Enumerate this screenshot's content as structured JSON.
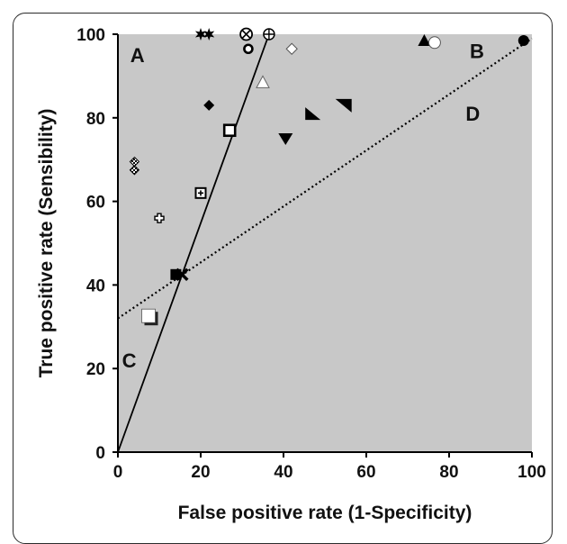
{
  "chart_data": {
    "type": "scatter",
    "xlabel": "False positive rate (1-Specificity)",
    "ylabel": "True positive rate (Sensibility)",
    "xlim": [
      0,
      100
    ],
    "ylim": [
      0,
      100
    ],
    "xticks": [
      0,
      20,
      40,
      60,
      80,
      100
    ],
    "yticks": [
      0,
      20,
      40,
      60,
      80,
      100
    ],
    "grid": false,
    "plot_background": "#c8c8c8",
    "region_labels": [
      {
        "text": "A",
        "x": 3,
        "y": 95
      },
      {
        "text": "B",
        "x": 85,
        "y": 96
      },
      {
        "text": "C",
        "x": 1,
        "y": 22
      },
      {
        "text": "D",
        "x": 84,
        "y": 81
      }
    ],
    "lines": [
      {
        "style": "solid",
        "x": [
          0,
          36.5
        ],
        "y": [
          0,
          100
        ]
      },
      {
        "style": "dotted",
        "x": [
          0,
          100
        ],
        "y": [
          32,
          99
        ]
      }
    ],
    "points": [
      {
        "x": 20,
        "y": 100,
        "marker": "star-filled"
      },
      {
        "x": 22,
        "y": 100,
        "marker": "star-filled"
      },
      {
        "x": 31,
        "y": 100,
        "marker": "circle-x"
      },
      {
        "x": 31.5,
        "y": 96.5,
        "marker": "circle-dot"
      },
      {
        "x": 36.5,
        "y": 100,
        "marker": "circle-plus"
      },
      {
        "x": 42,
        "y": 96.5,
        "marker": "diamond-open"
      },
      {
        "x": 35,
        "y": 88.5,
        "marker": "triangle-up-open"
      },
      {
        "x": 74,
        "y": 98.5,
        "marker": "triangle-up-filled"
      },
      {
        "x": 76.5,
        "y": 98,
        "marker": "circle-open"
      },
      {
        "x": 98,
        "y": 98.5,
        "marker": "circle-filled"
      },
      {
        "x": 22,
        "y": 83,
        "marker": "diamond-filled"
      },
      {
        "x": 27,
        "y": 77,
        "marker": "square-open-bold"
      },
      {
        "x": 47,
        "y": 81,
        "marker": "triangle-right-angle"
      },
      {
        "x": 54.5,
        "y": 83,
        "marker": "triangle-down-right-angle"
      },
      {
        "x": 40.5,
        "y": 75,
        "marker": "triangle-down-filled"
      },
      {
        "x": 4,
        "y": 69.5,
        "marker": "diamond-patterned"
      },
      {
        "x": 4,
        "y": 67.5,
        "marker": "diamond-patterned"
      },
      {
        "x": 20,
        "y": 62,
        "marker": "square-cross"
      },
      {
        "x": 10,
        "y": 56,
        "marker": "cross"
      },
      {
        "x": 14,
        "y": 42.5,
        "marker": "square-filled"
      },
      {
        "x": 15.5,
        "y": 42.5,
        "marker": "x-filled"
      },
      {
        "x": 7.5,
        "y": 32.5,
        "marker": "square-shadow"
      }
    ]
  }
}
